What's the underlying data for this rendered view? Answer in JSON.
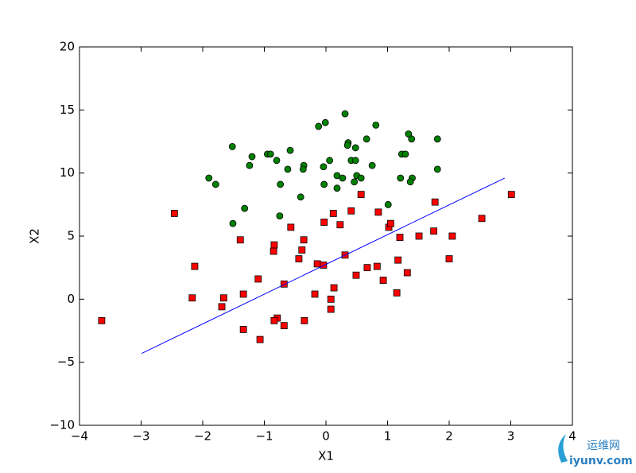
{
  "chart_data": {
    "type": "scatter",
    "xlabel": "X1",
    "ylabel": "X2",
    "xlim": [
      -4,
      4
    ],
    "ylim": [
      -10,
      20
    ],
    "xticks": [
      {
        "value": -4,
        "label": "−4"
      },
      {
        "value": -3,
        "label": "−3"
      },
      {
        "value": -2,
        "label": "−2"
      },
      {
        "value": -1,
        "label": "−1"
      },
      0,
      1,
      2,
      3,
      4
    ],
    "yticks": [
      {
        "value": -10,
        "label": "−10"
      },
      {
        "value": -5,
        "label": "−5"
      },
      0,
      5,
      10,
      15,
      20
    ],
    "series": [
      {
        "marker": "circle",
        "color": "#008000",
        "x": [
          0.31,
          -0.01,
          -0.12,
          0.81,
          1.34,
          0.36,
          0.35,
          0.66,
          1.39,
          1.81,
          0.48,
          -1.52,
          -0.58,
          -0.95,
          -0.9,
          -1.2,
          1.23,
          1.29,
          -0.8,
          0.06,
          0.41,
          0.48,
          -0.36,
          -0.37,
          -0.62,
          -1.24,
          -0.04,
          0.75,
          1.81,
          0.5,
          0.18,
          0.27,
          0.57,
          -1.9,
          -1.79,
          -0.74,
          -0.03,
          0.46,
          1.21,
          1.4,
          1.37,
          0.18,
          -0.41,
          1.01,
          -1.32,
          -1.51,
          -0.75
        ],
        "values": [
          14.7,
          14.0,
          13.7,
          13.8,
          13.1,
          12.4,
          12.2,
          12.7,
          12.7,
          12.7,
          12.0,
          12.1,
          11.8,
          11.5,
          11.5,
          11.3,
          11.5,
          11.5,
          11.0,
          11.0,
          11.0,
          11.0,
          10.6,
          10.3,
          10.3,
          10.6,
          10.5,
          10.6,
          10.3,
          9.8,
          9.8,
          9.6,
          9.6,
          9.6,
          9.1,
          9.1,
          9.1,
          9.3,
          9.6,
          9.6,
          9.3,
          8.8,
          8.1,
          7.5,
          7.2,
          6.0,
          6.6
        ]
      },
      {
        "marker": "square",
        "color": "#ff0000",
        "x": [
          -3.64,
          -2.46,
          -2.13,
          -2.17,
          -1.66,
          -1.69,
          -1.34,
          -1.34,
          -1.39,
          -1.1,
          -1.07,
          -0.84,
          -0.85,
          -0.68,
          -0.79,
          -0.84,
          -0.68,
          -0.57,
          -0.44,
          -0.39,
          -0.36,
          -0.35,
          -0.18,
          -0.14,
          -0.04,
          -0.03,
          0.12,
          0.23,
          0.31,
          0.13,
          0.08,
          0.08,
          0.41,
          0.57,
          0.49,
          0.67,
          0.83,
          0.85,
          0.93,
          1.02,
          1.05,
          1.2,
          1.17,
          1.15,
          1.32,
          1.51,
          1.75,
          1.77,
          2.0,
          2.05,
          2.53,
          3.01
        ],
        "values": [
          -1.7,
          6.8,
          2.6,
          0.1,
          0.1,
          -0.6,
          0.4,
          -2.4,
          4.7,
          1.6,
          -3.2,
          4.3,
          3.8,
          1.2,
          -1.5,
          -1.7,
          -2.1,
          5.7,
          3.2,
          3.9,
          4.7,
          -1.7,
          0.4,
          2.8,
          2.7,
          6.1,
          6.8,
          5.9,
          3.5,
          0.9,
          0.0,
          -0.8,
          7.0,
          8.3,
          1.9,
          2.5,
          2.6,
          6.9,
          1.5,
          5.7,
          6.0,
          4.9,
          3.1,
          0.5,
          2.1,
          5.0,
          5.4,
          7.7,
          3.2,
          5.0,
          6.4,
          8.3
        ]
      },
      {
        "marker": "line",
        "color": "#0000ff",
        "x": [
          -2.99,
          2.9
        ],
        "values": [
          -4.3,
          9.6
        ]
      }
    ]
  },
  "watermark": {
    "logo": "运维网",
    "site": "iyunv.com"
  }
}
